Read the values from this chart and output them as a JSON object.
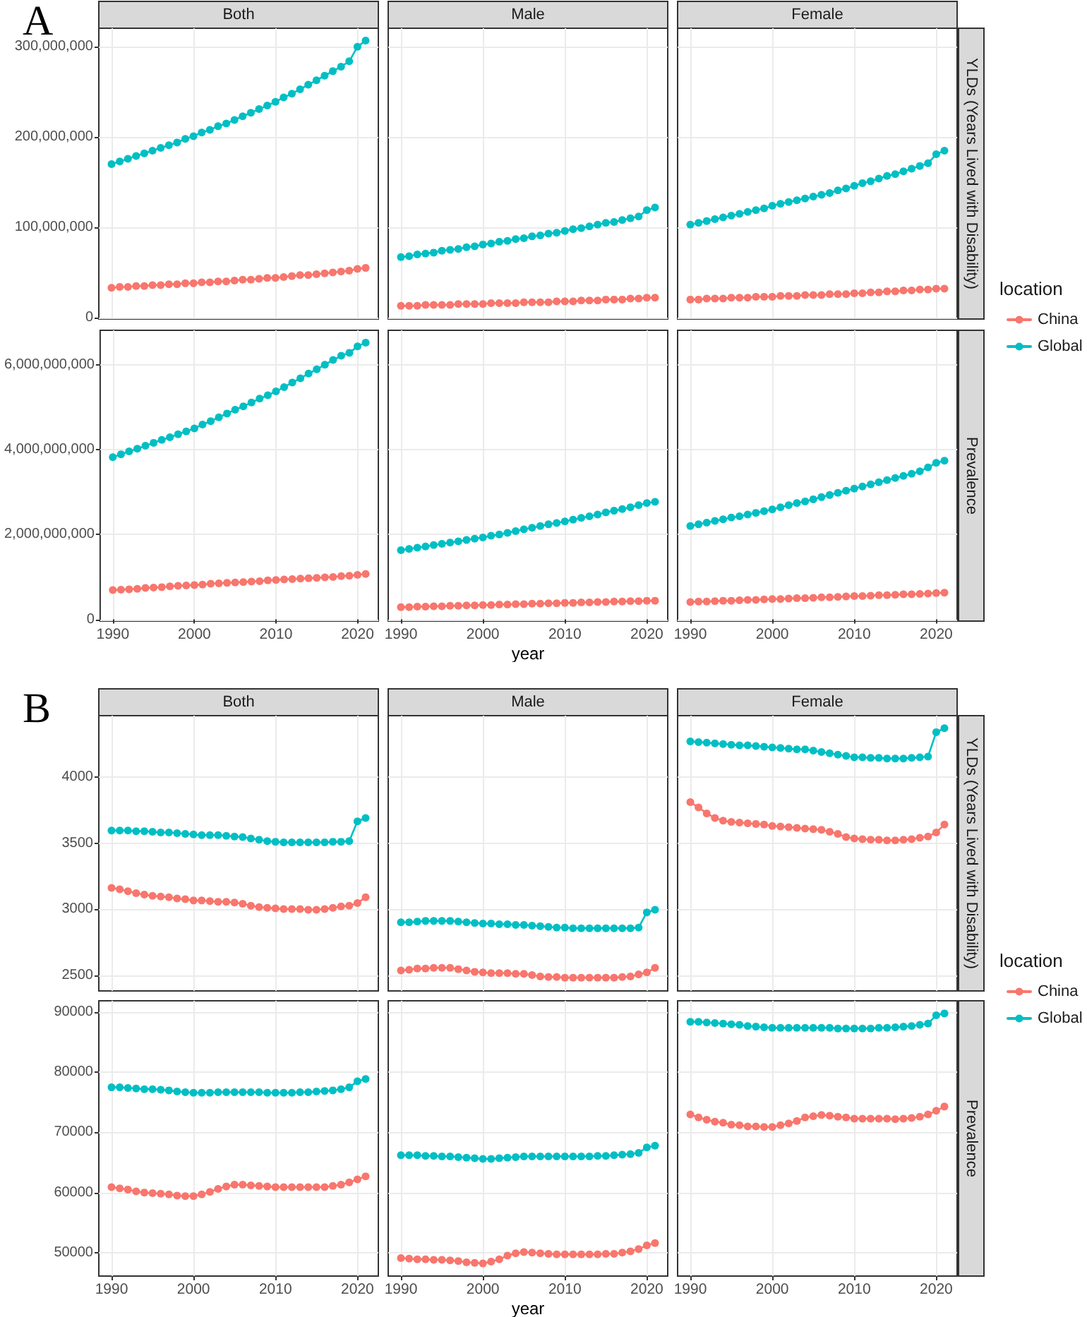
{
  "chart_data": [
    {
      "type": "line",
      "title": "Both",
      "annotations": [
        "A"
      ],
      "x": [
        1990,
        1991,
        1992,
        1993,
        1994,
        1995,
        1996,
        1997,
        1998,
        1999,
        2000,
        2001,
        2002,
        2003,
        2004,
        2005,
        2006,
        2007,
        2008,
        2009,
        2010,
        2011,
        2012,
        2013,
        2014,
        2015,
        2016,
        2017,
        2018,
        2019,
        2020,
        2021
      ],
      "xlim": [
        1988.45,
        2022.55
      ],
      "xticks": [
        1990,
        2000,
        2010,
        2020
      ],
      "ylim": [
        -1600000,
        320600000
      ],
      "yticks": [
        0,
        {
          "value": 100000000,
          "label": "100,000,000"
        },
        {
          "value": 200000000,
          "label": "200,000,000"
        },
        {
          "value": 300000000,
          "label": "300,000,000"
        }
      ],
      "tick_labels": "y",
      "grid": true,
      "marker": "circle",
      "series": [
        {
          "color": "#f8766d",
          "values": [
            33000000,
            34000000,
            34000000,
            35000000,
            35000000,
            36000000,
            36000000,
            37000000,
            37000000,
            38000000,
            38000000,
            39000000,
            39000000,
            40000000,
            40000000,
            41000000,
            42000000,
            42000000,
            43000000,
            44000000,
            44000000,
            45000000,
            46000000,
            47000000,
            47000000,
            48000000,
            49000000,
            50000000,
            51000000,
            52000000,
            54000000,
            55000000
          ]
        },
        {
          "color": "#00bfc4",
          "values": [
            170000000,
            173000000,
            176000000,
            179000000,
            182000000,
            185000000,
            188000000,
            191000000,
            194000000,
            198000000,
            201000000,
            205000000,
            208000000,
            212000000,
            215000000,
            219000000,
            223000000,
            227000000,
            231000000,
            235000000,
            239000000,
            244000000,
            248000000,
            253000000,
            258000000,
            263000000,
            268000000,
            273000000,
            278000000,
            284000000,
            300000000,
            307000000
          ]
        }
      ]
    },
    {
      "type": "line",
      "title": "Male",
      "x": [
        1990,
        1991,
        1992,
        1993,
        1994,
        1995,
        1996,
        1997,
        1998,
        1999,
        2000,
        2001,
        2002,
        2003,
        2004,
        2005,
        2006,
        2007,
        2008,
        2009,
        2010,
        2011,
        2012,
        2013,
        2014,
        2015,
        2016,
        2017,
        2018,
        2019,
        2020,
        2021
      ],
      "xlim": [
        1988.45,
        2022.55
      ],
      "xticks": [
        1990,
        2000,
        2010,
        2020
      ],
      "ylim": [
        -1600000,
        320600000
      ],
      "yticks": [
        0,
        100000000,
        200000000,
        300000000
      ],
      "tick_labels": false,
      "grid": true,
      "marker": "circle",
      "series": [
        {
          "color": "#f8766d",
          "values": [
            13000000,
            13000000,
            13000000,
            14000000,
            14000000,
            14000000,
            14000000,
            15000000,
            15000000,
            15000000,
            15000000,
            16000000,
            16000000,
            16000000,
            16000000,
            17000000,
            17000000,
            17000000,
            17000000,
            18000000,
            18000000,
            18000000,
            19000000,
            19000000,
            19000000,
            20000000,
            20000000,
            20000000,
            21000000,
            21000000,
            22000000,
            22000000
          ]
        },
        {
          "color": "#00bfc4",
          "values": [
            67000000,
            68000000,
            70000000,
            71000000,
            72000000,
            74000000,
            75000000,
            76000000,
            78000000,
            79000000,
            81000000,
            82000000,
            84000000,
            85000000,
            87000000,
            88000000,
            90000000,
            91000000,
            93000000,
            94000000,
            96000000,
            98000000,
            99000000,
            101000000,
            103000000,
            105000000,
            106000000,
            108000000,
            110000000,
            112000000,
            119000000,
            122000000
          ]
        }
      ]
    },
    {
      "type": "line",
      "title": "Female",
      "y2label": "YLDs (Years Lived with Disability)",
      "legend": "right",
      "legend_title": "location",
      "x": [
        1990,
        1991,
        1992,
        1993,
        1994,
        1995,
        1996,
        1997,
        1998,
        1999,
        2000,
        2001,
        2002,
        2003,
        2004,
        2005,
        2006,
        2007,
        2008,
        2009,
        2010,
        2011,
        2012,
        2013,
        2014,
        2015,
        2016,
        2017,
        2018,
        2019,
        2020,
        2021
      ],
      "xlim": [
        1988.45,
        2022.55
      ],
      "xticks": [
        1990,
        2000,
        2010,
        2020
      ],
      "ylim": [
        -1600000,
        320600000
      ],
      "yticks": [
        0,
        100000000,
        200000000,
        300000000
      ],
      "tick_labels": false,
      "grid": true,
      "marker": "circle",
      "series": [
        {
          "name": "China",
          "color": "#f8766d",
          "values": [
            20000000,
            20000000,
            21000000,
            21000000,
            21000000,
            22000000,
            22000000,
            22000000,
            23000000,
            23000000,
            23000000,
            24000000,
            24000000,
            24000000,
            25000000,
            25000000,
            25000000,
            26000000,
            26000000,
            26000000,
            27000000,
            27000000,
            28000000,
            28000000,
            29000000,
            29000000,
            30000000,
            30000000,
            31000000,
            31000000,
            32000000,
            32000000
          ]
        },
        {
          "name": "Global",
          "color": "#00bfc4",
          "values": [
            103000000,
            105000000,
            107000000,
            109000000,
            111000000,
            113000000,
            115000000,
            117000000,
            119000000,
            121000000,
            124000000,
            126000000,
            128000000,
            130000000,
            132000000,
            134000000,
            136000000,
            138000000,
            141000000,
            143000000,
            146000000,
            149000000,
            151000000,
            154000000,
            157000000,
            159000000,
            162000000,
            165000000,
            168000000,
            171000000,
            181000000,
            185000000
          ]
        }
      ]
    },
    {
      "type": "line",
      "x": [
        1990,
        1991,
        1992,
        1993,
        1994,
        1995,
        1996,
        1997,
        1998,
        1999,
        2000,
        2001,
        2002,
        2003,
        2004,
        2005,
        2006,
        2007,
        2008,
        2009,
        2010,
        2011,
        2012,
        2013,
        2014,
        2015,
        2016,
        2017,
        2018,
        2019,
        2020,
        2021
      ],
      "xlim": [
        1988.45,
        2022.55
      ],
      "xticks": [
        1990,
        2000,
        2010,
        2020
      ],
      "ylim": [
        -40000000,
        6810000000
      ],
      "yticks": [
        0,
        {
          "value": 2000000000,
          "label": "2,000,000,000"
        },
        {
          "value": 4000000000,
          "label": "4,000,000,000"
        },
        {
          "value": 6000000000,
          "label": "6,000,000,000"
        }
      ],
      "grid": true,
      "marker": "circle",
      "series": [
        {
          "color": "#f8766d",
          "values": [
            690000000,
            700000000,
            710000000,
            720000000,
            740000000,
            750000000,
            760000000,
            780000000,
            790000000,
            800000000,
            810000000,
            820000000,
            840000000,
            850000000,
            860000000,
            870000000,
            880000000,
            890000000,
            900000000,
            920000000,
            930000000,
            940000000,
            950000000,
            960000000,
            970000000,
            980000000,
            990000000,
            1000000000,
            1020000000,
            1030000000,
            1050000000,
            1070000000
          ]
        },
        {
          "color": "#00bfc4",
          "values": [
            3820000000,
            3890000000,
            3960000000,
            4020000000,
            4090000000,
            4160000000,
            4230000000,
            4290000000,
            4360000000,
            4430000000,
            4500000000,
            4590000000,
            4670000000,
            4760000000,
            4850000000,
            4940000000,
            5020000000,
            5110000000,
            5200000000,
            5280000000,
            5370000000,
            5470000000,
            5580000000,
            5680000000,
            5790000000,
            5890000000,
            6000000000,
            6110000000,
            6210000000,
            6280000000,
            6430000000,
            6520000000
          ]
        }
      ]
    },
    {
      "type": "line",
      "xlabel": "year",
      "x": [
        1990,
        1991,
        1992,
        1993,
        1994,
        1995,
        1996,
        1997,
        1998,
        1999,
        2000,
        2001,
        2002,
        2003,
        2004,
        2005,
        2006,
        2007,
        2008,
        2009,
        2010,
        2011,
        2012,
        2013,
        2014,
        2015,
        2016,
        2017,
        2018,
        2019,
        2020,
        2021
      ],
      "xlim": [
        1988.45,
        2022.55
      ],
      "xticks": [
        1990,
        2000,
        2010,
        2020
      ],
      "ylim": [
        -40000000,
        6810000000
      ],
      "yticks": [
        0,
        2000000000,
        4000000000,
        6000000000
      ],
      "tick_labels": "x",
      "grid": true,
      "marker": "circle",
      "series": [
        {
          "color": "#f8766d",
          "values": [
            290000000,
            290000000,
            300000000,
            300000000,
            310000000,
            310000000,
            320000000,
            320000000,
            330000000,
            330000000,
            340000000,
            340000000,
            350000000,
            350000000,
            360000000,
            360000000,
            370000000,
            370000000,
            380000000,
            380000000,
            390000000,
            390000000,
            400000000,
            400000000,
            410000000,
            410000000,
            420000000,
            420000000,
            430000000,
            430000000,
            440000000,
            440000000
          ]
        },
        {
          "color": "#00bfc4",
          "values": [
            1630000000,
            1660000000,
            1690000000,
            1720000000,
            1750000000,
            1780000000,
            1810000000,
            1840000000,
            1870000000,
            1900000000,
            1930000000,
            1970000000,
            2000000000,
            2040000000,
            2080000000,
            2120000000,
            2160000000,
            2200000000,
            2240000000,
            2270000000,
            2310000000,
            2350000000,
            2390000000,
            2430000000,
            2470000000,
            2520000000,
            2560000000,
            2600000000,
            2640000000,
            2690000000,
            2740000000,
            2770000000
          ]
        }
      ]
    },
    {
      "type": "line",
      "y2label": "Prevalence",
      "x": [
        1990,
        1991,
        1992,
        1993,
        1994,
        1995,
        1996,
        1997,
        1998,
        1999,
        2000,
        2001,
        2002,
        2003,
        2004,
        2005,
        2006,
        2007,
        2008,
        2009,
        2010,
        2011,
        2012,
        2013,
        2014,
        2015,
        2016,
        2017,
        2018,
        2019,
        2020,
        2021
      ],
      "xlim": [
        1988.45,
        2022.55
      ],
      "xticks": [
        1990,
        2000,
        2010,
        2020
      ],
      "ylim": [
        -40000000,
        6810000000
      ],
      "yticks": [
        0,
        2000000000,
        4000000000,
        6000000000
      ],
      "tick_labels": "x",
      "grid": true,
      "marker": "circle",
      "series": [
        {
          "color": "#f8766d",
          "values": [
            410000000,
            420000000,
            420000000,
            430000000,
            440000000,
            440000000,
            450000000,
            460000000,
            460000000,
            470000000,
            480000000,
            480000000,
            490000000,
            500000000,
            500000000,
            510000000,
            520000000,
            520000000,
            530000000,
            540000000,
            550000000,
            550000000,
            560000000,
            570000000,
            570000000,
            580000000,
            590000000,
            590000000,
            600000000,
            610000000,
            620000000,
            630000000
          ]
        },
        {
          "color": "#00bfc4",
          "values": [
            2200000000,
            2240000000,
            2280000000,
            2320000000,
            2360000000,
            2400000000,
            2430000000,
            2470000000,
            2510000000,
            2550000000,
            2590000000,
            2640000000,
            2690000000,
            2740000000,
            2780000000,
            2830000000,
            2880000000,
            2930000000,
            2980000000,
            3030000000,
            3080000000,
            3130000000,
            3180000000,
            3230000000,
            3280000000,
            3330000000,
            3380000000,
            3430000000,
            3490000000,
            3580000000,
            3690000000,
            3740000000
          ]
        }
      ]
    },
    {
      "type": "line",
      "title": "Both",
      "annotations": [
        "B"
      ],
      "x": [
        1990,
        1991,
        1992,
        1993,
        1994,
        1995,
        1996,
        1997,
        1998,
        1999,
        2000,
        2001,
        2002,
        2003,
        2004,
        2005,
        2006,
        2007,
        2008,
        2009,
        2010,
        2011,
        2012,
        2013,
        2014,
        2015,
        2016,
        2017,
        2018,
        2019,
        2020,
        2021
      ],
      "xlim": [
        1988.45,
        2022.55
      ],
      "xticks": [
        1990,
        2000,
        2010,
        2020
      ],
      "ylim": [
        2380,
        4465
      ],
      "yticks": [
        2500,
        3000,
        3500,
        4000
      ],
      "tick_labels": "y",
      "grid": true,
      "marker": "circle",
      "series": [
        {
          "color": "#f8766d",
          "values": [
            3160,
            3150,
            3135,
            3120,
            3110,
            3100,
            3095,
            3090,
            3080,
            3075,
            3065,
            3065,
            3060,
            3055,
            3055,
            3050,
            3040,
            3025,
            3015,
            3010,
            3005,
            3000,
            3000,
            3000,
            2995,
            2995,
            3000,
            3010,
            3020,
            3025,
            3045,
            3090
          ]
        },
        {
          "color": "#00bfc4",
          "values": [
            3595,
            3595,
            3595,
            3590,
            3590,
            3585,
            3580,
            3580,
            3575,
            3570,
            3565,
            3560,
            3560,
            3560,
            3555,
            3550,
            3545,
            3535,
            3525,
            3515,
            3510,
            3505,
            3505,
            3505,
            3505,
            3505,
            3505,
            3510,
            3510,
            3515,
            3665,
            3690
          ]
        }
      ]
    },
    {
      "type": "line",
      "title": "Male",
      "x": [
        1990,
        1991,
        1992,
        1993,
        1994,
        1995,
        1996,
        1997,
        1998,
        1999,
        2000,
        2001,
        2002,
        2003,
        2004,
        2005,
        2006,
        2007,
        2008,
        2009,
        2010,
        2011,
        2012,
        2013,
        2014,
        2015,
        2016,
        2017,
        2018,
        2019,
        2020,
        2021
      ],
      "xlim": [
        1988.45,
        2022.55
      ],
      "xticks": [
        1990,
        2000,
        2010,
        2020
      ],
      "ylim": [
        2380,
        4465
      ],
      "yticks": [
        2500,
        3000,
        3500,
        4000
      ],
      "tick_labels": false,
      "grid": true,
      "marker": "circle",
      "series": [
        {
          "color": "#f8766d",
          "values": [
            2535,
            2540,
            2550,
            2550,
            2555,
            2555,
            2555,
            2545,
            2535,
            2525,
            2520,
            2515,
            2515,
            2515,
            2510,
            2510,
            2500,
            2490,
            2485,
            2485,
            2480,
            2480,
            2480,
            2480,
            2480,
            2480,
            2480,
            2485,
            2490,
            2505,
            2520,
            2555
          ]
        },
        {
          "color": "#00bfc4",
          "values": [
            2900,
            2900,
            2905,
            2910,
            2910,
            2910,
            2910,
            2905,
            2900,
            2895,
            2890,
            2890,
            2885,
            2885,
            2880,
            2880,
            2875,
            2870,
            2865,
            2860,
            2860,
            2855,
            2855,
            2855,
            2855,
            2855,
            2855,
            2855,
            2855,
            2860,
            2975,
            2995
          ]
        }
      ]
    },
    {
      "type": "line",
      "title": "Female",
      "y2label": "YLDs (Years Lived with Disability)",
      "legend": "right",
      "legend_title": "location",
      "x": [
        1990,
        1991,
        1992,
        1993,
        1994,
        1995,
        1996,
        1997,
        1998,
        1999,
        2000,
        2001,
        2002,
        2003,
        2004,
        2005,
        2006,
        2007,
        2008,
        2009,
        2010,
        2011,
        2012,
        2013,
        2014,
        2015,
        2016,
        2017,
        2018,
        2019,
        2020,
        2021
      ],
      "xlim": [
        1988.45,
        2022.55
      ],
      "xticks": [
        1990,
        2000,
        2010,
        2020
      ],
      "ylim": [
        2380,
        4465
      ],
      "yticks": [
        2500,
        3000,
        3500,
        4000
      ],
      "tick_labels": false,
      "grid": true,
      "marker": "circle",
      "series": [
        {
          "name": "China",
          "color": "#f8766d",
          "values": [
            3810,
            3770,
            3725,
            3690,
            3670,
            3660,
            3655,
            3650,
            3645,
            3640,
            3630,
            3625,
            3620,
            3615,
            3610,
            3605,
            3600,
            3585,
            3570,
            3545,
            3535,
            3530,
            3525,
            3525,
            3520,
            3520,
            3525,
            3530,
            3540,
            3550,
            3580,
            3640
          ]
        },
        {
          "name": "Global",
          "color": "#00bfc4",
          "values": [
            4270,
            4265,
            4260,
            4255,
            4250,
            4245,
            4240,
            4240,
            4235,
            4230,
            4225,
            4220,
            4215,
            4210,
            4210,
            4200,
            4190,
            4180,
            4170,
            4160,
            4150,
            4150,
            4145,
            4145,
            4140,
            4140,
            4140,
            4145,
            4150,
            4155,
            4340,
            4370
          ]
        }
      ]
    },
    {
      "type": "line",
      "x": [
        1990,
        1991,
        1992,
        1993,
        1994,
        1995,
        1996,
        1997,
        1998,
        1999,
        2000,
        2001,
        2002,
        2003,
        2004,
        2005,
        2006,
        2007,
        2008,
        2009,
        2010,
        2011,
        2012,
        2013,
        2014,
        2015,
        2016,
        2017,
        2018,
        2019,
        2020,
        2021
      ],
      "xlim": [
        1988.45,
        2022.55
      ],
      "xticks": [
        1990,
        2000,
        2010,
        2020
      ],
      "ylim": [
        46100,
        91900
      ],
      "yticks": [
        50000,
        60000,
        70000,
        80000,
        90000
      ],
      "grid": true,
      "marker": "circle",
      "series": [
        {
          "color": "#f8766d",
          "values": [
            60900,
            60700,
            60500,
            60200,
            60000,
            59900,
            59800,
            59700,
            59500,
            59400,
            59400,
            59700,
            60100,
            60600,
            61000,
            61300,
            61300,
            61200,
            61100,
            61000,
            60900,
            60900,
            60900,
            60900,
            60900,
            60900,
            60900,
            61100,
            61300,
            61700,
            62200,
            62700
          ]
        },
        {
          "color": "#00bfc4",
          "values": [
            77500,
            77500,
            77400,
            77300,
            77200,
            77200,
            77100,
            77000,
            76800,
            76700,
            76600,
            76600,
            76600,
            76700,
            76700,
            76700,
            76700,
            76700,
            76700,
            76600,
            76600,
            76600,
            76600,
            76700,
            76700,
            76800,
            76900,
            77000,
            77200,
            77500,
            78500,
            78900
          ]
        }
      ]
    },
    {
      "type": "line",
      "xlabel": "year",
      "x": [
        1990,
        1991,
        1992,
        1993,
        1994,
        1995,
        1996,
        1997,
        1998,
        1999,
        2000,
        2001,
        2002,
        2003,
        2004,
        2005,
        2006,
        2007,
        2008,
        2009,
        2010,
        2011,
        2012,
        2013,
        2014,
        2015,
        2016,
        2017,
        2018,
        2019,
        2020,
        2021
      ],
      "xlim": [
        1988.45,
        2022.55
      ],
      "xticks": [
        1990,
        2000,
        2010,
        2020
      ],
      "ylim": [
        46100,
        91900
      ],
      "yticks": [
        50000,
        60000,
        70000,
        80000,
        90000
      ],
      "tick_labels": "x",
      "grid": true,
      "marker": "circle",
      "series": [
        {
          "color": "#f8766d",
          "values": [
            49100,
            49000,
            48900,
            48900,
            48800,
            48800,
            48700,
            48600,
            48400,
            48300,
            48200,
            48500,
            48900,
            49500,
            49900,
            50100,
            50000,
            49900,
            49800,
            49700,
            49700,
            49700,
            49700,
            49700,
            49700,
            49800,
            49800,
            50000,
            50200,
            50600,
            51200,
            51600
          ]
        },
        {
          "color": "#00bfc4",
          "values": [
            66200,
            66200,
            66200,
            66100,
            66100,
            66000,
            66000,
            65900,
            65800,
            65700,
            65600,
            65600,
            65700,
            65800,
            65900,
            66000,
            66000,
            66000,
            66000,
            66000,
            66000,
            66000,
            66000,
            66000,
            66100,
            66100,
            66200,
            66300,
            66400,
            66600,
            67500,
            67800
          ]
        }
      ]
    },
    {
      "type": "line",
      "y2label": "Prevalence",
      "x": [
        1990,
        1991,
        1992,
        1993,
        1994,
        1995,
        1996,
        1997,
        1998,
        1999,
        2000,
        2001,
        2002,
        2003,
        2004,
        2005,
        2006,
        2007,
        2008,
        2009,
        2010,
        2011,
        2012,
        2013,
        2014,
        2015,
        2016,
        2017,
        2018,
        2019,
        2020,
        2021
      ],
      "xlim": [
        1988.45,
        2022.55
      ],
      "xticks": [
        1990,
        2000,
        2010,
        2020
      ],
      "ylim": [
        46100,
        91900
      ],
      "yticks": [
        50000,
        60000,
        70000,
        80000,
        90000
      ],
      "tick_labels": "x",
      "grid": true,
      "marker": "circle",
      "series": [
        {
          "color": "#f8766d",
          "values": [
            73000,
            72500,
            72100,
            71800,
            71600,
            71300,
            71200,
            71000,
            71000,
            70900,
            70900,
            71200,
            71500,
            71900,
            72500,
            72700,
            72900,
            72800,
            72600,
            72500,
            72300,
            72300,
            72300,
            72300,
            72300,
            72200,
            72300,
            72400,
            72600,
            73000,
            73600,
            74300
          ]
        },
        {
          "color": "#00bfc4",
          "values": [
            88400,
            88400,
            88300,
            88200,
            88100,
            88000,
            87900,
            87700,
            87600,
            87500,
            87400,
            87400,
            87400,
            87400,
            87400,
            87400,
            87400,
            87400,
            87300,
            87300,
            87300,
            87300,
            87300,
            87400,
            87400,
            87500,
            87600,
            87700,
            87900,
            88100,
            89500,
            89800
          ]
        }
      ]
    }
  ]
}
